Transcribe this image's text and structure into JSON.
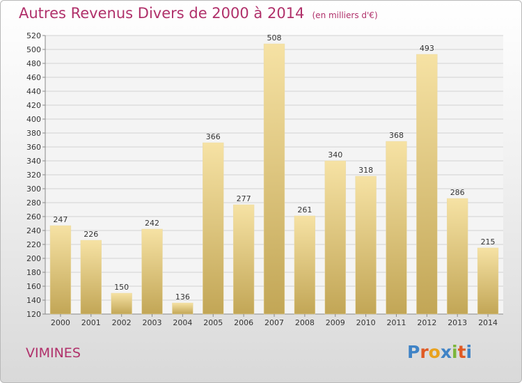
{
  "title": "Autres Revenus Divers de 2000 à 2014",
  "subtitle": "(en milliers d'€)",
  "footer_label": "VIMINES",
  "logo_text": "Proxiti",
  "colors": {
    "title": "#b0306a",
    "bar_light": "#f6e2a4",
    "bar_dark": "#c2a656",
    "grid": "#d2d2d2",
    "logo": [
      "#3f83c6",
      "#e05a24",
      "#e9a21e",
      "#3f83c6",
      "#7bb53a",
      "#e05a24",
      "#3f83c6"
    ]
  },
  "chart_data": {
    "type": "bar",
    "title": "Autres Revenus Divers de 2000 à 2014",
    "subtitle": "(en milliers d'€)",
    "categories": [
      "2000",
      "2001",
      "2002",
      "2003",
      "2004",
      "2005",
      "2006",
      "2007",
      "2008",
      "2009",
      "2010",
      "2011",
      "2012",
      "2013",
      "2014"
    ],
    "values": [
      247,
      226,
      150,
      242,
      136,
      366,
      277,
      508,
      261,
      340,
      318,
      368,
      493,
      286,
      215
    ],
    "ylim": [
      120,
      520
    ],
    "yticks": [
      120,
      140,
      160,
      180,
      200,
      220,
      240,
      260,
      280,
      300,
      320,
      340,
      360,
      380,
      400,
      420,
      440,
      460,
      480,
      500,
      520
    ],
    "grid": true,
    "legend": "none"
  }
}
